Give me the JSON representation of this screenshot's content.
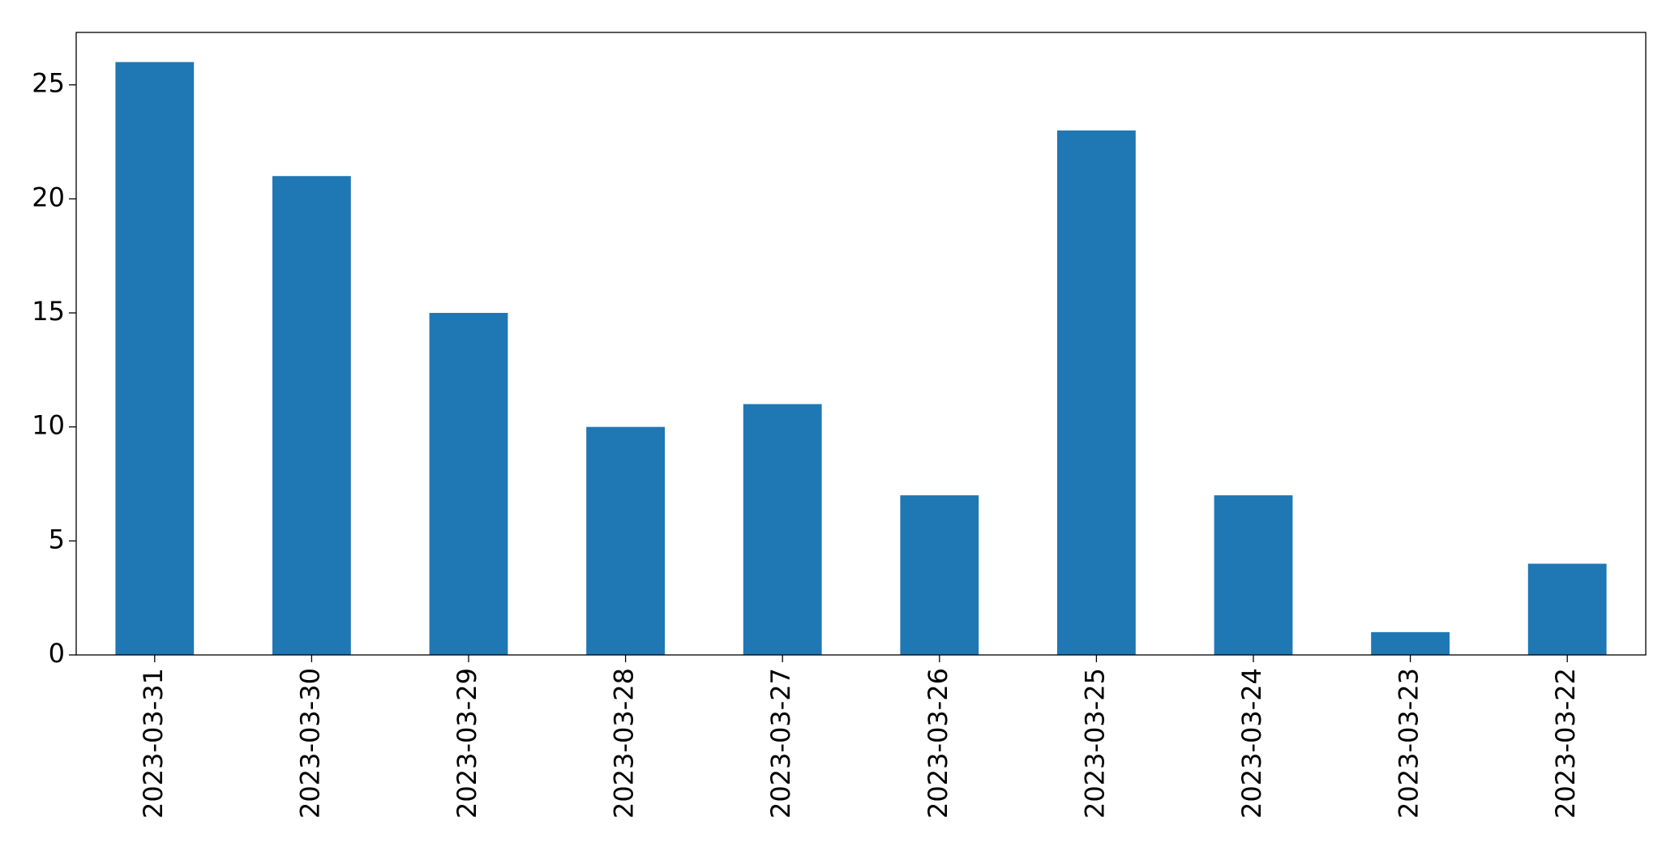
{
  "chart_data": {
    "type": "bar",
    "categories": [
      "2023-03-31",
      "2023-03-30",
      "2023-03-29",
      "2023-03-28",
      "2023-03-27",
      "2023-03-26",
      "2023-03-25",
      "2023-03-24",
      "2023-03-23",
      "2023-03-22"
    ],
    "values": [
      26,
      21,
      15,
      10,
      11,
      7,
      23,
      7,
      1,
      4
    ],
    "color": "#1f77b4",
    "ylim": [
      0,
      27.3
    ],
    "yticks": [
      0,
      5,
      10,
      15,
      20,
      25
    ],
    "grid": false
  }
}
